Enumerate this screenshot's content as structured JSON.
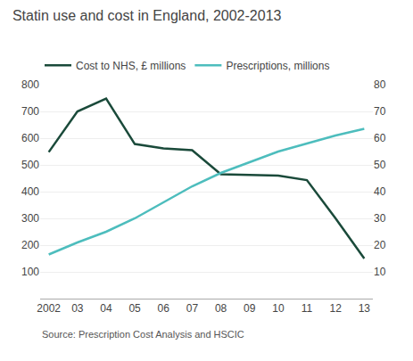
{
  "chart_data": {
    "type": "line",
    "title": "Statin use and cost in England, 2002-2013",
    "annotations": [
      "Source: Prescription Cost Analysis and HSCIC"
    ],
    "categories": [
      "2002",
      "03",
      "04",
      "05",
      "06",
      "07",
      "08",
      "09",
      "10",
      "11",
      "12",
      "13"
    ],
    "series": [
      {
        "name": "Cost to NHS, £ millions",
        "color": "#1a4a3a",
        "axis": "y",
        "values": [
          548,
          700,
          748,
          578,
          562,
          555,
          465,
          462,
          460,
          443,
          300,
          150
        ]
      },
      {
        "name": "Prescriptions, millions",
        "color": "#4dbdbd",
        "axis": "y2",
        "values": [
          16.5,
          21,
          25,
          30,
          36,
          42,
          47,
          51,
          55,
          58,
          61,
          63.5
        ]
      }
    ],
    "ylim": [
      0,
      800
    ],
    "yticks": [
      100,
      200,
      300,
      400,
      500,
      600,
      700,
      800
    ],
    "y2lim": [
      0,
      80
    ],
    "y2ticks": [
      10,
      20,
      30,
      40,
      50,
      60,
      70,
      80
    ],
    "grid": true,
    "legend": "top"
  }
}
